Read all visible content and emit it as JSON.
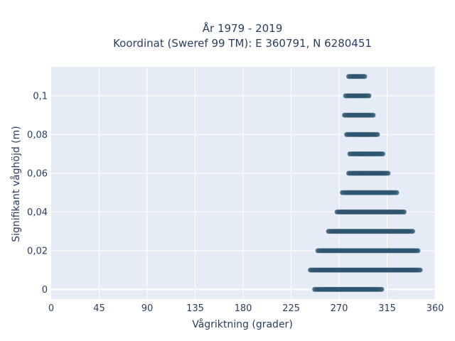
{
  "chart_data": {
    "type": "scatter",
    "title": "År 1979 - 2019",
    "subtitle": "Koordinat (Sweref 99 TM): E 360791, N 6280451",
    "xlabel": "Vågriktning (grader)",
    "ylabel": "Signifikant våghöjd (m)",
    "xlim": [
      0,
      360
    ],
    "ylim": [
      -0.005,
      0.115
    ],
    "xticks": [
      0,
      45,
      90,
      135,
      180,
      225,
      270,
      315,
      360
    ],
    "xtick_labels": [
      "0",
      "45",
      "90",
      "135",
      "180",
      "225",
      "270",
      "315",
      "360"
    ],
    "yticks": [
      0,
      0.02,
      0.04,
      0.06,
      0.08,
      0.1
    ],
    "ytick_labels": [
      "0",
      "0,02",
      "0,04",
      "0,06",
      "0,08",
      "0,1"
    ],
    "grid": true,
    "marker_color": "#2f5570",
    "background_color": "#e5ecf6",
    "bands": [
      {
        "y": 0.0,
        "x_min": 247,
        "x_max": 310
      },
      {
        "y": 0.01,
        "x_min": 243,
        "x_max": 346
      },
      {
        "y": 0.02,
        "x_min": 250,
        "x_max": 344
      },
      {
        "y": 0.03,
        "x_min": 260,
        "x_max": 339
      },
      {
        "y": 0.04,
        "x_min": 268,
        "x_max": 331
      },
      {
        "y": 0.05,
        "x_min": 273,
        "x_max": 324
      },
      {
        "y": 0.06,
        "x_min": 279,
        "x_max": 316
      },
      {
        "y": 0.07,
        "x_min": 280,
        "x_max": 311
      },
      {
        "y": 0.08,
        "x_min": 277,
        "x_max": 306
      },
      {
        "y": 0.09,
        "x_min": 275,
        "x_max": 302
      },
      {
        "y": 0.1,
        "x_min": 276,
        "x_max": 298
      },
      {
        "y": 0.11,
        "x_min": 279,
        "x_max": 294
      }
    ]
  }
}
